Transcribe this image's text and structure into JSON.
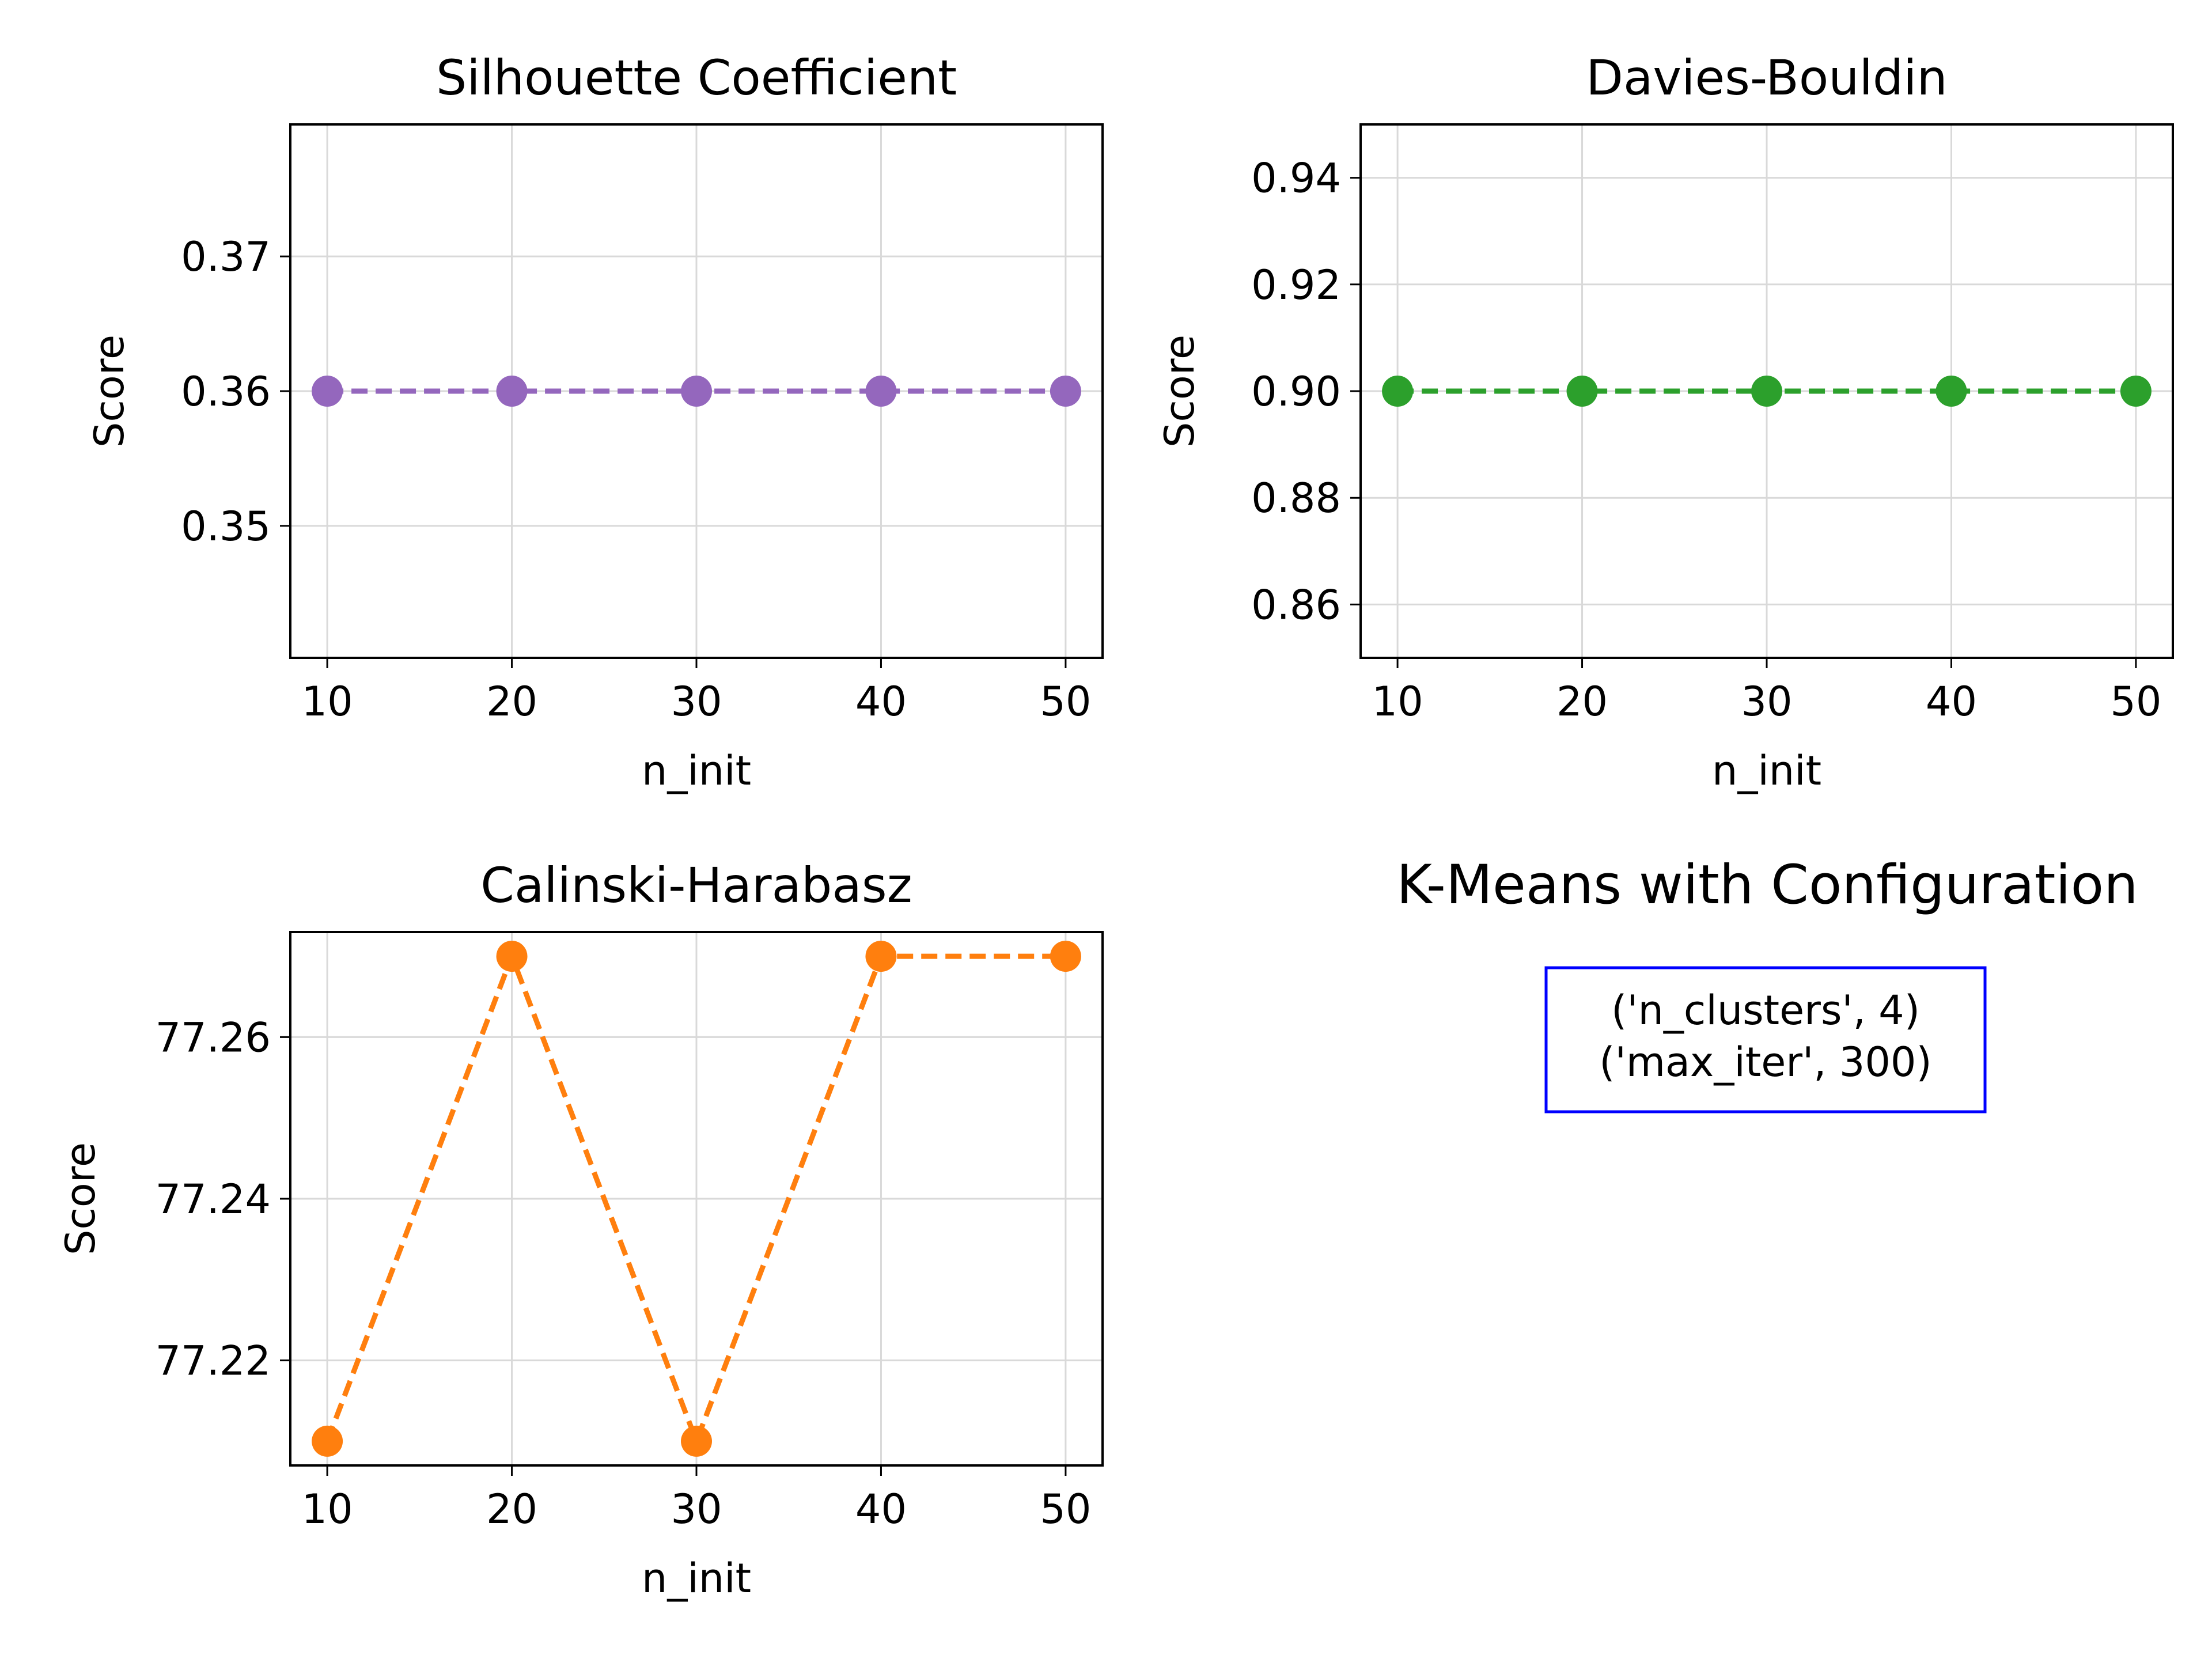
{
  "figure_title": "",
  "chart_data": [
    {
      "type": "line",
      "title": "Silhouette Coefficient",
      "xlabel": "n_init",
      "ylabel": "Score",
      "x": [
        10,
        20,
        30,
        40,
        50
      ],
      "series": [
        {
          "values": [
            0.36,
            0.36,
            0.36,
            0.36,
            0.36
          ]
        }
      ],
      "xlim": [
        8,
        52
      ],
      "ylim": [
        0.3402,
        0.3798
      ],
      "xticks": [
        10,
        20,
        30,
        40,
        50
      ],
      "yticks": [
        0.35,
        0.36,
        0.37
      ],
      "ytick_labels": [
        "0.35",
        "0.36",
        "0.37"
      ],
      "line_style": "dashed",
      "marker": "circle",
      "color": "#9467bd",
      "grid": true
    },
    {
      "type": "line",
      "title": "Davies-Bouldin",
      "xlabel": "n_init",
      "ylabel": "Score",
      "x": [
        10,
        20,
        30,
        40,
        50
      ],
      "series": [
        {
          "values": [
            0.9,
            0.9,
            0.9,
            0.9,
            0.9
          ]
        }
      ],
      "xlim": [
        8,
        52
      ],
      "ylim": [
        0.85,
        0.95
      ],
      "xticks": [
        10,
        20,
        30,
        40,
        50
      ],
      "yticks": [
        0.86,
        0.88,
        0.9,
        0.92,
        0.94
      ],
      "ytick_labels": [
        "0.86",
        "0.88",
        "0.90",
        "0.92",
        "0.94"
      ],
      "line_style": "dashed",
      "marker": "circle",
      "color": "#2ca02c",
      "grid": true
    },
    {
      "type": "line",
      "title": "Calinski-Harabasz",
      "xlabel": "n_init",
      "ylabel": "Score",
      "x": [
        10,
        20,
        30,
        40,
        50
      ],
      "series": [
        {
          "values": [
            77.21,
            77.27,
            77.21,
            77.27,
            77.27
          ]
        }
      ],
      "xlim": [
        8,
        52
      ],
      "ylim": [
        77.207,
        77.273
      ],
      "xticks": [
        10,
        20,
        30,
        40,
        50
      ],
      "yticks": [
        77.22,
        77.24,
        77.26
      ],
      "ytick_labels": [
        "77.22",
        "77.24",
        "77.26"
      ],
      "line_style": "dashed",
      "marker": "circle",
      "color": "#ff7f0e",
      "grid": true
    }
  ],
  "info_panel": {
    "title": "K-Means with Configuration",
    "lines": [
      "('n_clusters', 4)",
      "('max_iter', 300)"
    ],
    "border_color": "#0000ff"
  }
}
